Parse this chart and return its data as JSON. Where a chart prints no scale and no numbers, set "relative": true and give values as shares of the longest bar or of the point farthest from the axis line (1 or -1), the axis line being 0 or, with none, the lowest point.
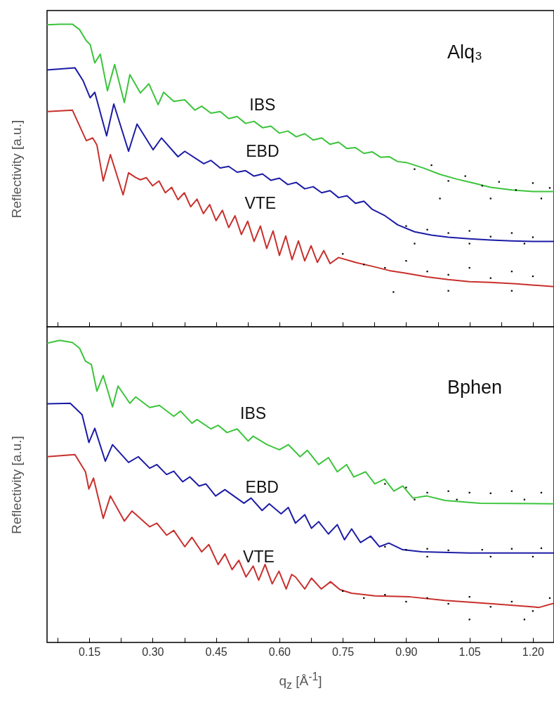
{
  "chart_data": [
    {
      "type": "line",
      "title": "Alq₃",
      "ylabel": "Reflectivity [a.u.]",
      "relative": true,
      "tick_labels": false,
      "xlim": [
        0.05,
        1.25
      ],
      "xticks": [
        {
          "value": 0.075,
          "label": null
        },
        0.15,
        {
          "value": 0.225,
          "label": null
        },
        0.3,
        {
          "value": 0.375,
          "label": null
        },
        0.45,
        {
          "value": 0.525,
          "label": null
        },
        0.6,
        {
          "value": 0.675,
          "label": null
        },
        0.75,
        {
          "value": 0.825,
          "label": null
        },
        0.9,
        {
          "value": 0.975,
          "label": null
        },
        1.05,
        {
          "value": 1.125,
          "label": null
        },
        1.2
      ],
      "series": [
        {
          "name": "IBS",
          "color": "#3cc43c",
          "x": [
            0.05,
            0.08,
            0.11,
            0.127,
            0.143,
            0.152,
            0.163,
            0.176,
            0.193,
            0.21,
            0.233,
            0.246,
            0.271,
            0.291,
            0.313,
            0.326,
            0.35,
            0.376,
            0.4,
            0.416,
            0.438,
            0.46,
            0.48,
            0.5,
            0.52,
            0.54,
            0.56,
            0.58,
            0.6,
            0.62,
            0.64,
            0.66,
            0.68,
            0.7,
            0.72,
            0.74,
            0.76,
            0.78,
            0.8,
            0.82,
            0.84,
            0.86,
            0.88,
            0.9,
            0.94,
            0.98,
            1.02,
            1.06,
            1.1,
            1.15,
            1.2,
            1.25
          ],
          "values": [
            0.998,
            1,
            1,
            0.982,
            0.945,
            0.933,
            0.872,
            0.901,
            0.78,
            0.867,
            0.741,
            0.833,
            0.773,
            0.803,
            0.734,
            0.775,
            0.745,
            0.75,
            0.716,
            0.729,
            0.706,
            0.711,
            0.688,
            0.695,
            0.672,
            0.679,
            0.658,
            0.663,
            0.64,
            0.647,
            0.628,
            0.638,
            0.617,
            0.624,
            0.603,
            0.61,
            0.589,
            0.592,
            0.573,
            0.578,
            0.56,
            0.562,
            0.546,
            0.543,
            0.525,
            0.504,
            0.488,
            0.475,
            0.461,
            0.452,
            0.447,
            0.447
          ]
        },
        {
          "name": "EBD",
          "color": "#1c1ca6",
          "x": [
            0.05,
            0.116,
            0.135,
            0.152,
            0.163,
            0.191,
            0.208,
            0.243,
            0.263,
            0.301,
            0.321,
            0.36,
            0.376,
            0.421,
            0.438,
            0.46,
            0.48,
            0.5,
            0.52,
            0.54,
            0.56,
            0.58,
            0.6,
            0.62,
            0.64,
            0.66,
            0.68,
            0.7,
            0.72,
            0.74,
            0.76,
            0.78,
            0.8,
            0.82,
            0.85,
            0.88,
            0.92,
            0.96,
            1.0,
            1.05,
            1.1,
            1.15,
            1.2,
            1.25
          ],
          "values": [
            0.849,
            0.856,
            0.814,
            0.757,
            0.775,
            0.631,
            0.736,
            0.58,
            0.67,
            0.585,
            0.624,
            0.562,
            0.58,
            0.539,
            0.55,
            0.525,
            0.53,
            0.511,
            0.516,
            0.498,
            0.505,
            0.484,
            0.491,
            0.47,
            0.477,
            0.456,
            0.463,
            0.443,
            0.45,
            0.427,
            0.433,
            0.408,
            0.415,
            0.388,
            0.367,
            0.337,
            0.314,
            0.303,
            0.296,
            0.291,
            0.287,
            0.284,
            0.282,
            0.282
          ]
        },
        {
          "name": "VTE",
          "color": "#c8302c",
          "x": [
            0.05,
            0.11,
            0.143,
            0.158,
            0.168,
            0.183,
            0.2,
            0.23,
            0.243,
            0.26,
            0.271,
            0.285,
            0.3,
            0.315,
            0.33,
            0.345,
            0.36,
            0.375,
            0.39,
            0.405,
            0.42,
            0.435,
            0.45,
            0.465,
            0.48,
            0.495,
            0.51,
            0.525,
            0.54,
            0.555,
            0.57,
            0.585,
            0.6,
            0.615,
            0.63,
            0.645,
            0.66,
            0.675,
            0.69,
            0.705,
            0.72,
            0.74,
            0.78,
            0.82,
            0.86,
            0.9,
            0.95,
            1.0,
            1.05,
            1.1,
            1.16,
            1.25
          ],
          "values": [
            0.711,
            0.716,
            0.615,
            0.624,
            0.601,
            0.482,
            0.569,
            0.436,
            0.509,
            0.493,
            0.486,
            0.493,
            0.466,
            0.482,
            0.443,
            0.461,
            0.42,
            0.443,
            0.397,
            0.422,
            0.374,
            0.404,
            0.351,
            0.385,
            0.328,
            0.367,
            0.305,
            0.349,
            0.282,
            0.333,
            0.259,
            0.317,
            0.236,
            0.3,
            0.222,
            0.284,
            0.218,
            0.268,
            0.213,
            0.252,
            0.209,
            0.229,
            0.213,
            0.2,
            0.186,
            0.177,
            0.165,
            0.156,
            0.149,
            0.147,
            0.142,
            0.133
          ]
        },
        {
          "type": "scatter",
          "color": "#000000",
          "x": [
            0.92,
            0.96,
            1.0,
            1.04,
            1.08,
            1.12,
            1.16,
            1.2,
            1.24,
            0.98,
            1.1,
            1.22,
            0.9,
            0.95,
            1.0,
            1.05,
            1.1,
            1.15,
            1.2,
            0.92,
            1.05,
            1.18,
            0.75,
            0.8,
            0.85,
            0.9,
            0.95,
            1.0,
            1.05,
            1.1,
            1.15,
            1.2,
            0.87,
            1.0,
            1.15
          ],
          "values": [
            0.521,
            0.534,
            0.482,
            0.498,
            0.466,
            0.479,
            0.452,
            0.475,
            0.459,
            0.424,
            0.424,
            0.424,
            0.333,
            0.321,
            0.31,
            0.317,
            0.298,
            0.31,
            0.296,
            0.275,
            0.275,
            0.275,
            0.241,
            0.206,
            0.195,
            0.218,
            0.183,
            0.172,
            0.195,
            0.161,
            0.183,
            0.167,
            0.115,
            0.119,
            0.119
          ]
        }
      ]
    },
    {
      "type": "line",
      "title": "Bphen",
      "ylabel": "Reflectivity [a.u.]",
      "xlabel": "q$_{z}$ [Å$^{-1}$]",
      "relative": true,
      "tick_labels": "x",
      "xlim": [
        0.05,
        1.25
      ],
      "xticks": [
        {
          "value": 0.075,
          "label": null
        },
        0.15,
        {
          "value": 0.225,
          "label": null
        },
        {
          "value": 0.3,
          "label": "0.30"
        },
        {
          "value": 0.375,
          "label": null
        },
        0.45,
        {
          "value": 0.525,
          "label": null
        },
        {
          "value": 0.6,
          "label": "0.60"
        },
        {
          "value": 0.675,
          "label": null
        },
        0.75,
        {
          "value": 0.825,
          "label": null
        },
        {
          "value": 0.9,
          "label": "0.90"
        },
        {
          "value": 0.975,
          "label": null
        },
        1.05,
        {
          "value": 1.125,
          "label": null
        },
        {
          "value": 1.2,
          "label": "1.20"
        }
      ],
      "series": [
        {
          "name": "IBS",
          "color": "#3cc43c",
          "x": [
            0.05,
            0.08,
            0.11,
            0.127,
            0.141,
            0.155,
            0.168,
            0.183,
            0.205,
            0.218,
            0.246,
            0.26,
            0.293,
            0.316,
            0.35,
            0.366,
            0.393,
            0.405,
            0.438,
            0.455,
            0.476,
            0.5,
            0.526,
            0.538,
            0.571,
            0.6,
            0.621,
            0.649,
            0.666,
            0.693,
            0.716,
            0.737,
            0.759,
            0.776,
            0.804,
            0.826,
            0.849,
            0.871,
            0.892,
            0.916,
            0.949,
            0.992,
            1.075,
            1.25
          ],
          "values": [
            0.991,
            1,
            0.993,
            0.974,
            0.931,
            0.92,
            0.832,
            0.884,
            0.78,
            0.849,
            0.792,
            0.813,
            0.778,
            0.785,
            0.749,
            0.766,
            0.726,
            0.738,
            0.707,
            0.719,
            0.695,
            0.707,
            0.667,
            0.683,
            0.655,
            0.638,
            0.655,
            0.615,
            0.636,
            0.589,
            0.612,
            0.565,
            0.589,
            0.548,
            0.565,
            0.525,
            0.541,
            0.501,
            0.518,
            0.478,
            0.485,
            0.47,
            0.461,
            0.459
          ]
        },
        {
          "name": "EBD",
          "color": "#1c1ca6",
          "x": [
            0.05,
            0.105,
            0.133,
            0.149,
            0.163,
            0.188,
            0.205,
            0.243,
            0.266,
            0.293,
            0.31,
            0.333,
            0.35,
            0.371,
            0.388,
            0.41,
            0.426,
            0.449,
            0.471,
            0.516,
            0.533,
            0.559,
            0.576,
            0.604,
            0.621,
            0.638,
            0.66,
            0.676,
            0.693,
            0.716,
            0.737,
            0.754,
            0.771,
            0.792,
            0.816,
            0.837,
            0.859,
            0.892,
            0.937,
            1.049,
            1.25
          ],
          "values": [
            0.79,
            0.792,
            0.754,
            0.662,
            0.709,
            0.6,
            0.655,
            0.596,
            0.615,
            0.577,
            0.589,
            0.556,
            0.567,
            0.532,
            0.548,
            0.518,
            0.525,
            0.485,
            0.506,
            0.461,
            0.478,
            0.437,
            0.459,
            0.426,
            0.447,
            0.395,
            0.423,
            0.378,
            0.4,
            0.359,
            0.39,
            0.34,
            0.376,
            0.331,
            0.352,
            0.317,
            0.329,
            0.307,
            0.3,
            0.296,
            0.296
          ]
        },
        {
          "name": "VTE",
          "color": "#c8302c",
          "x": [
            0.05,
            0.116,
            0.141,
            0.149,
            0.16,
            0.183,
            0.2,
            0.233,
            0.251,
            0.293,
            0.31,
            0.333,
            0.35,
            0.376,
            0.393,
            0.416,
            0.433,
            0.455,
            0.471,
            0.488,
            0.504,
            0.521,
            0.538,
            0.551,
            0.566,
            0.583,
            0.599,
            0.616,
            0.629,
            0.638,
            0.66,
            0.676,
            0.699,
            0.721,
            0.743,
            0.771,
            0.826,
            0.909,
            0.992,
            1.104,
            1.215,
            1.25
          ],
          "values": [
            0.615,
            0.622,
            0.565,
            0.508,
            0.544,
            0.411,
            0.485,
            0.402,
            0.435,
            0.383,
            0.395,
            0.355,
            0.371,
            0.317,
            0.348,
            0.3,
            0.324,
            0.258,
            0.293,
            0.241,
            0.272,
            0.217,
            0.253,
            0.206,
            0.258,
            0.194,
            0.236,
            0.177,
            0.225,
            0.217,
            0.177,
            0.213,
            0.177,
            0.201,
            0.175,
            0.163,
            0.154,
            0.151,
            0.139,
            0.128,
            0.116,
            0.13
          ]
        },
        {
          "type": "scatter",
          "color": "#000000",
          "x": [
            0.85,
            0.9,
            0.95,
            1.0,
            1.05,
            1.1,
            1.15,
            1.22,
            0.92,
            1.02,
            1.18,
            0.85,
            0.9,
            0.95,
            1.0,
            1.08,
            1.15,
            1.22,
            0.95,
            1.1,
            1.2,
            0.75,
            0.8,
            0.85,
            0.9,
            0.95,
            1.0,
            1.05,
            1.1,
            1.15,
            1.2,
            1.24,
            1.05,
            1.18
          ],
          "values": [
            0.525,
            0.513,
            0.496,
            0.501,
            0.496,
            0.494,
            0.501,
            0.496,
            0.473,
            0.473,
            0.473,
            0.317,
            0.307,
            0.31,
            0.305,
            0.307,
            0.31,
            0.312,
            0.284,
            0.284,
            0.284,
            0.17,
            0.147,
            0.158,
            0.135,
            0.147,
            0.128,
            0.151,
            0.118,
            0.135,
            0.104,
            0.147,
            0.076,
            0.076
          ]
        }
      ]
    }
  ]
}
